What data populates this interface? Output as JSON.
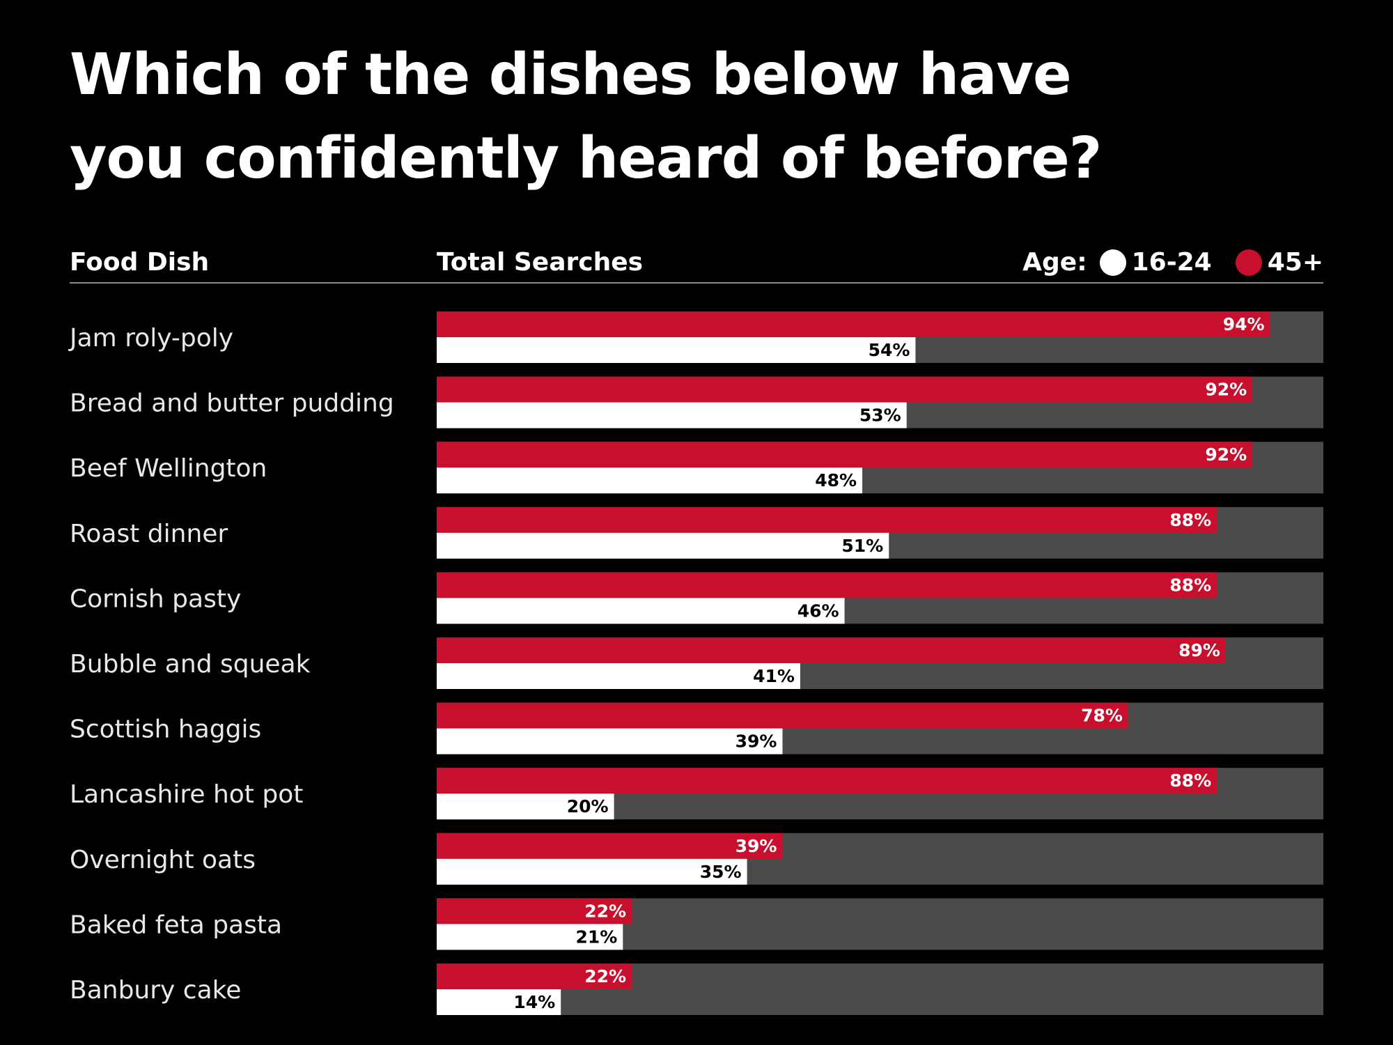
{
  "chart_data": {
    "type": "bar",
    "title_line1": "Which of the dishes below have",
    "title_line2": "you confidently heard of before?",
    "col_category": "Food Dish",
    "col_value": "Total Searches",
    "legend_label": "Age:",
    "categories": [
      "Jam roly-poly",
      "Bread and butter pudding",
      "Beef Wellington",
      "Roast dinner",
      "Cornish pasty",
      "Bubble and squeak",
      "Scottish haggis",
      "Lancashire hot pot",
      "Overnight oats",
      "Baked feta pasta",
      "Banbury cake"
    ],
    "series": [
      {
        "name": "45+",
        "color": "#c8102e",
        "values": [
          94,
          92,
          92,
          88,
          88,
          89,
          78,
          88,
          39,
          22,
          22
        ]
      },
      {
        "name": "16-24",
        "color": "#ffffff",
        "values": [
          54,
          53,
          48,
          51,
          46,
          41,
          39,
          20,
          35,
          21,
          14
        ]
      }
    ],
    "value_suffix": "%",
    "xlim": [
      0,
      100
    ],
    "track_color": "#4a4a4a",
    "legend_position": "top-right",
    "grid": false
  }
}
